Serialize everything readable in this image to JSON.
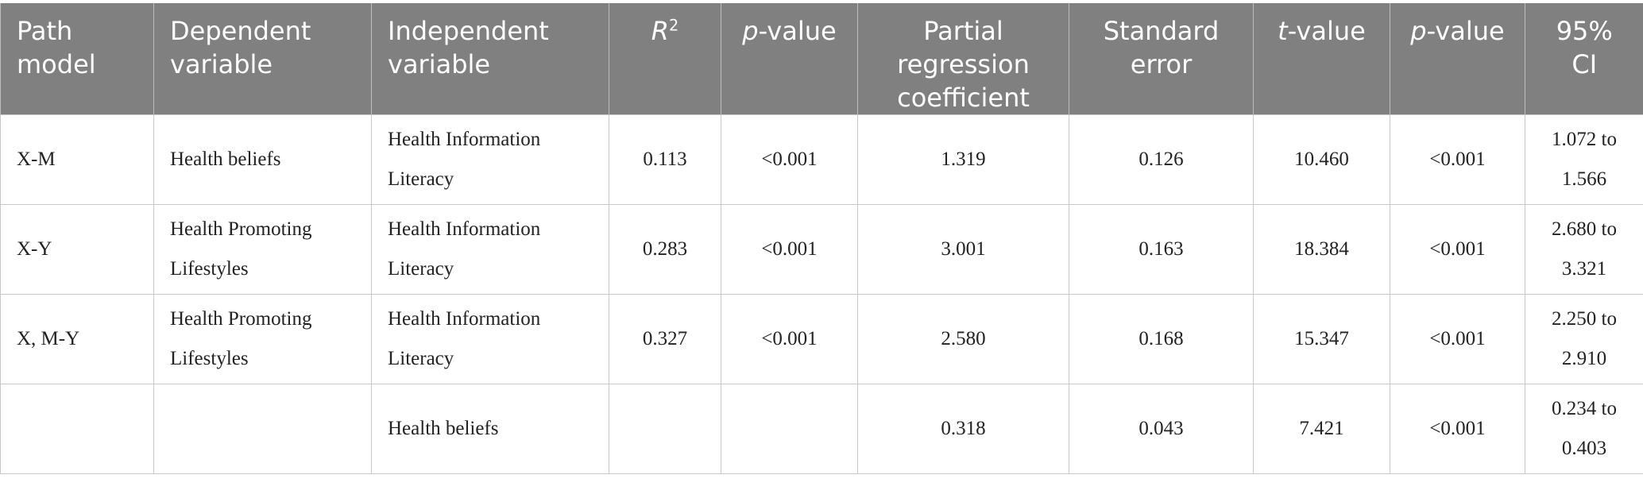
{
  "table": {
    "header": [
      "Path model",
      "Dependent variable",
      "Independent variable",
      {
        "italic": "R",
        "sup": "2"
      },
      {
        "italic": "p",
        "rest": "-value"
      },
      "Partial regression coefficient",
      "Standard error",
      {
        "italic": "t",
        "rest": "-value"
      },
      {
        "italic": "p",
        "rest": "-value"
      },
      "95% CI"
    ],
    "rows": [
      [
        "X-M",
        "Health beliefs",
        "Health Information Literacy",
        "0.113",
        "<0.001",
        "1.319",
        "0.126",
        "10.460",
        "<0.001",
        "1.072 to 1.566"
      ],
      [
        "X-Y",
        "Health Promoting Lifestyles",
        "Health Information Literacy",
        "0.283",
        "<0.001",
        "3.001",
        "0.163",
        "18.384",
        "<0.001",
        "2.680 to 3.321"
      ],
      [
        "X, M-Y",
        "Health Promoting Lifestyles",
        "Health Information Literacy",
        "0.327",
        "<0.001",
        "2.580",
        "0.168",
        "15.347",
        "<0.001",
        "2.250 to 2.910"
      ],
      [
        null,
        null,
        "Health beliefs",
        null,
        null,
        "0.318",
        "0.043",
        "7.421",
        "<0.001",
        "0.234 to 0.403"
      ]
    ]
  }
}
